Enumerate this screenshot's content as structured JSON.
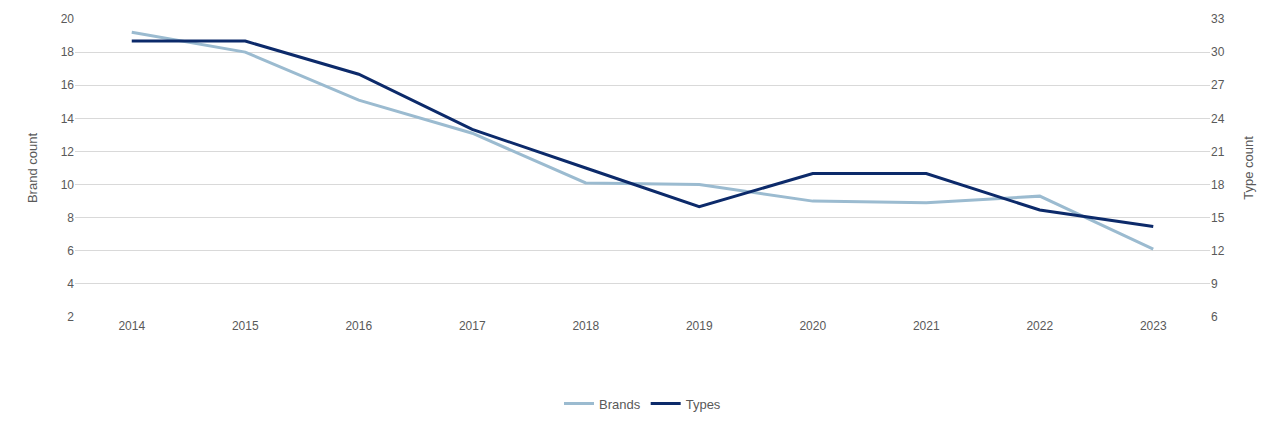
{
  "chart_data": {
    "type": "line",
    "categories": [
      "2014",
      "2015",
      "2016",
      "2017",
      "2018",
      "2019",
      "2020",
      "2021",
      "2022",
      "2023"
    ],
    "series": [
      {
        "name": "Brands",
        "color": "#9bbbd0",
        "values": [
          19.2,
          18.0,
          15.1,
          13.1,
          10.1,
          10.0,
          9.0,
          8.9,
          9.3,
          6.1
        ]
      },
      {
        "name": "Types",
        "color": "#0c2a6a",
        "axis": "y2",
        "values": [
          31,
          31,
          28,
          23,
          19.5,
          16,
          19,
          19,
          15.7,
          14.2
        ]
      }
    ],
    "y_label": "Brand count",
    "y2_label": "Type count",
    "ylim": [
      2,
      20
    ],
    "yticks": [
      2,
      4,
      6,
      8,
      10,
      12,
      14,
      16,
      18,
      20
    ],
    "y2lim": [
      6,
      33
    ],
    "y2ticks": [
      6,
      9,
      12,
      15,
      18,
      21,
      24,
      27,
      30,
      33
    ],
    "grid": true,
    "legend": "bottom"
  }
}
